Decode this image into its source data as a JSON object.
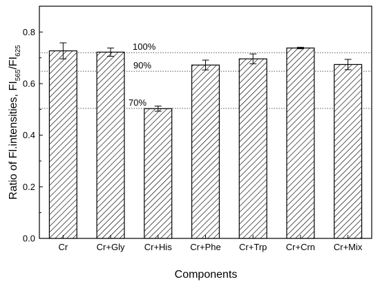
{
  "chart_data": {
    "type": "bar",
    "categories": [
      "Cr",
      "Cr+Gly",
      "Cr+His",
      "Cr+Phe",
      "Cr+Trp",
      "Cr+Crn",
      "Cr+Mix"
    ],
    "values": [
      0.727,
      0.722,
      0.503,
      0.672,
      0.696,
      0.738,
      0.674
    ],
    "errors": [
      0.031,
      0.016,
      0.01,
      0.019,
      0.019,
      0.003,
      0.02
    ],
    "xlabel": "Components",
    "ylabel": "Ratio of Fl.intensities, FI565/FI625",
    "ylabel_parts": {
      "main": "Ratio of Fl.intensities, FI",
      "sub1": "565",
      "mid": "/FI",
      "sub2": "625"
    },
    "ylim": [
      0,
      0.9
    ],
    "yticks": [
      0.0,
      0.2,
      0.4,
      0.6,
      0.8
    ],
    "ytick_labels": [
      "0.0",
      "0.2",
      "0.4",
      "0.6",
      "0.8"
    ],
    "reference_lines": [
      {
        "label": "100%",
        "value": 0.72
      },
      {
        "label": "90%",
        "value": 0.648
      },
      {
        "label": "70%",
        "value": 0.504
      }
    ],
    "bar_fill": "hatched",
    "colors": {
      "bar_edge": "#000000",
      "hatch": "#000000",
      "ref_line": "#555555"
    }
  }
}
